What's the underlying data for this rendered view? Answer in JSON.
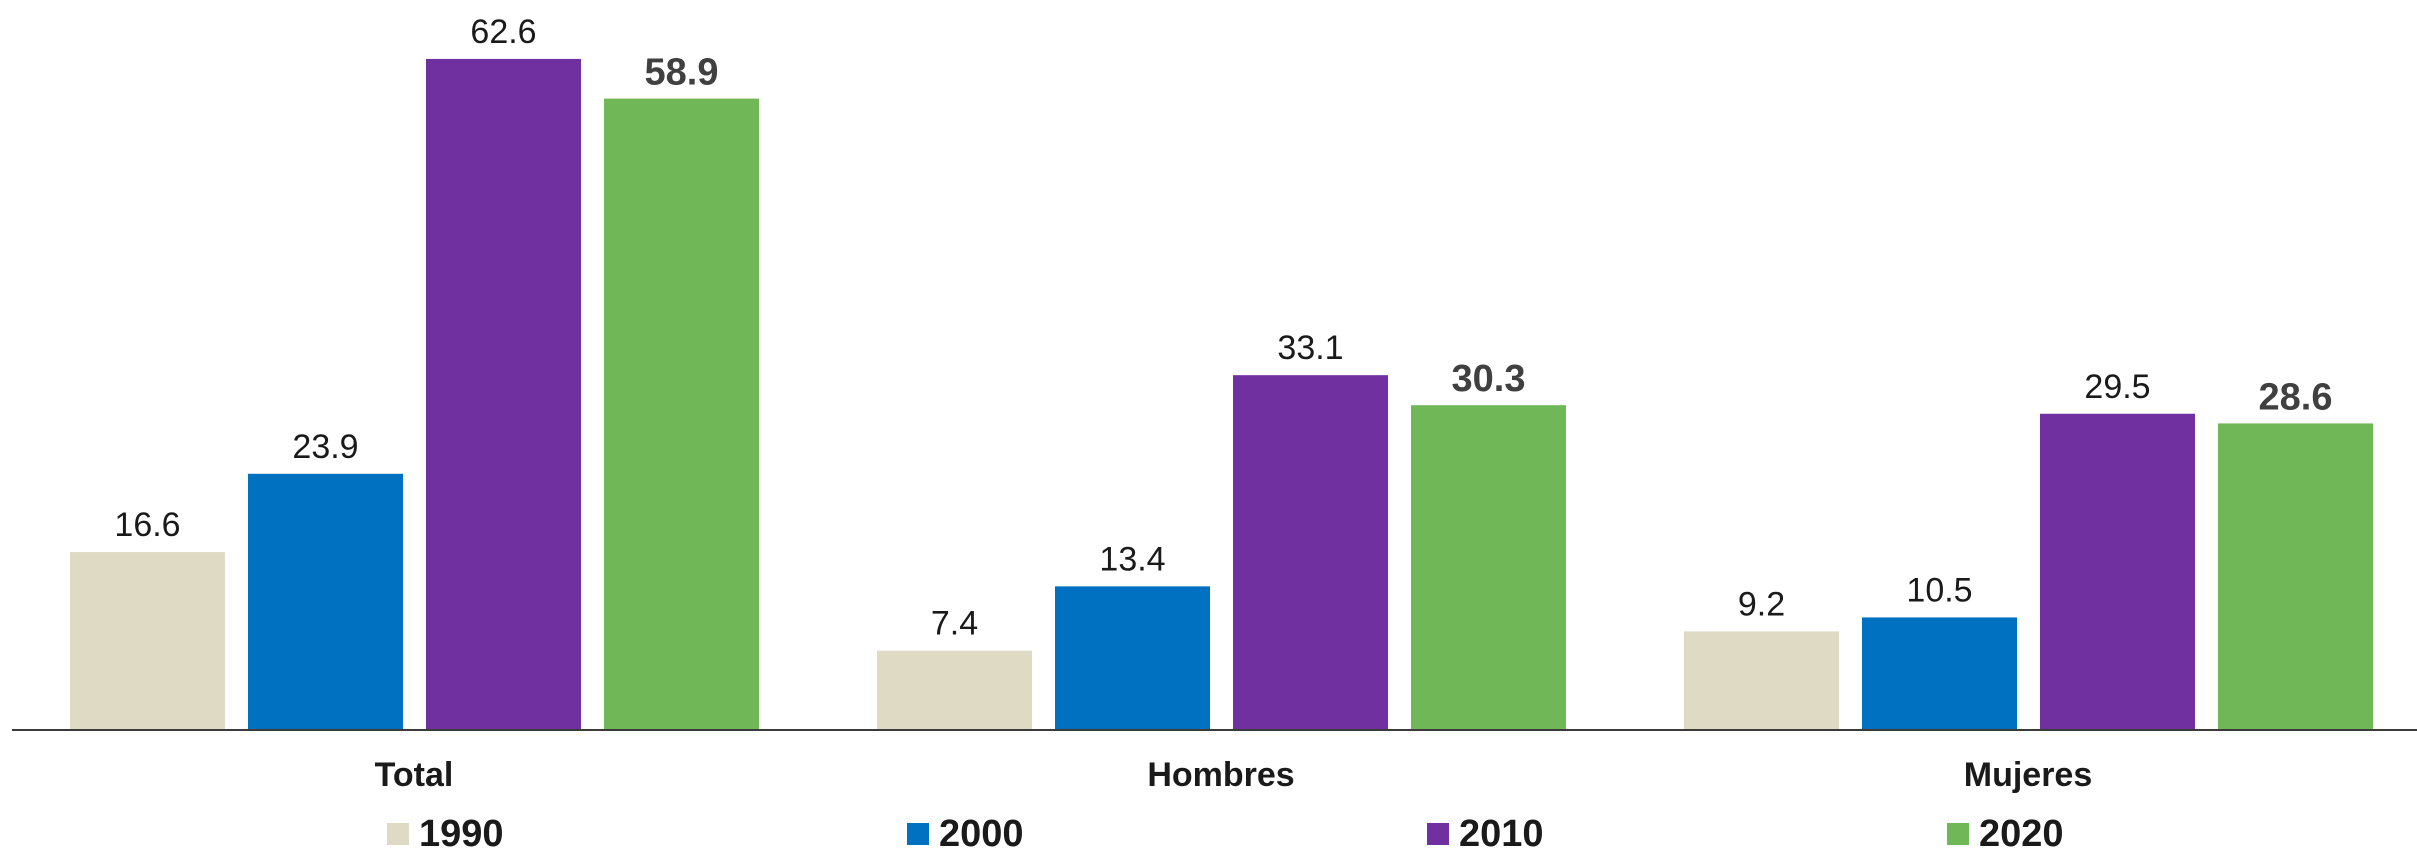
{
  "chart_data": {
    "type": "bar",
    "categories": [
      "Total",
      "Hombres",
      "Mujeres"
    ],
    "series": [
      {
        "name": "1990",
        "color": "#dedac4",
        "values": [
          16.6,
          7.4,
          9.2
        ],
        "label_style": "normal"
      },
      {
        "name": "2000",
        "color": "#0070c0",
        "values": [
          23.9,
          13.4,
          10.5
        ],
        "label_style": "normal"
      },
      {
        "name": "2010",
        "color": "#7030a0",
        "values": [
          62.6,
          33.1,
          29.5
        ],
        "label_style": "normal"
      },
      {
        "name": "2020",
        "color": "#70b857",
        "values": [
          58.9,
          30.3,
          28.6
        ],
        "label_style": "bold"
      }
    ],
    "ylim": [
      0,
      65
    ],
    "grid": false,
    "legend_position": "bottom",
    "title": "",
    "xlabel": "",
    "ylabel": ""
  }
}
